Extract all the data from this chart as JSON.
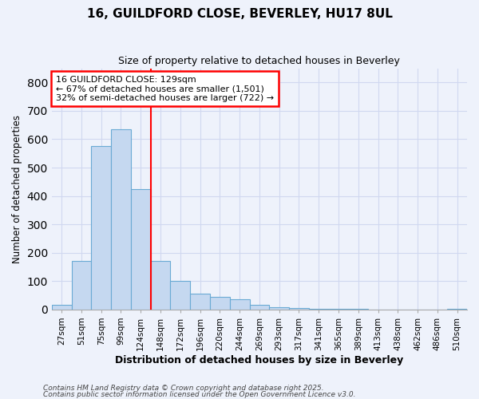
{
  "title1": "16, GUILDFORD CLOSE, BEVERLEY, HU17 8UL",
  "title2": "Size of property relative to detached houses in Beverley",
  "xlabel": "Distribution of detached houses by size in Beverley",
  "ylabel": "Number of detached properties",
  "categories": [
    "27sqm",
    "51sqm",
    "75sqm",
    "99sqm",
    "124sqm",
    "148sqm",
    "172sqm",
    "196sqm",
    "220sqm",
    "244sqm",
    "269sqm",
    "293sqm",
    "317sqm",
    "341sqm",
    "365sqm",
    "389sqm",
    "413sqm",
    "438sqm",
    "462sqm",
    "486sqm",
    "510sqm"
  ],
  "values": [
    17,
    170,
    575,
    635,
    425,
    170,
    100,
    55,
    45,
    35,
    15,
    8,
    5,
    3,
    2,
    2,
    0,
    0,
    0,
    0,
    3
  ],
  "bar_color": "#c5d8f0",
  "bar_edgecolor": "#6aaad4",
  "vline_x_idx": 4,
  "vline_color": "red",
  "annotation_text": "16 GUILDFORD CLOSE: 129sqm\n← 67% of detached houses are smaller (1,501)\n32% of semi-detached houses are larger (722) →",
  "annotation_box_color": "white",
  "annotation_box_edgecolor": "red",
  "ylim": [
    0,
    850
  ],
  "yticks": [
    0,
    100,
    200,
    300,
    400,
    500,
    600,
    700,
    800
  ],
  "footer1": "Contains HM Land Registry data © Crown copyright and database right 2025.",
  "footer2": "Contains public sector information licensed under the Open Government Licence v3.0.",
  "background_color": "#eef2fb",
  "grid_color": "#d0d8f0"
}
